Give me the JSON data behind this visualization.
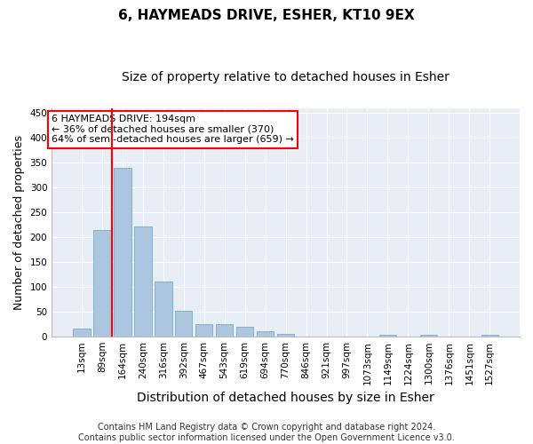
{
  "title": "6, HAYMEADS DRIVE, ESHER, KT10 9EX",
  "subtitle": "Size of property relative to detached houses in Esher",
  "xlabel": "Distribution of detached houses by size in Esher",
  "ylabel": "Number of detached properties",
  "categories": [
    "13sqm",
    "89sqm",
    "164sqm",
    "240sqm",
    "316sqm",
    "392sqm",
    "467sqm",
    "543sqm",
    "619sqm",
    "694sqm",
    "770sqm",
    "846sqm",
    "921sqm",
    "997sqm",
    "1073sqm",
    "1149sqm",
    "1224sqm",
    "1300sqm",
    "1376sqm",
    "1451sqm",
    "1527sqm"
  ],
  "values": [
    17,
    215,
    340,
    222,
    111,
    52,
    25,
    25,
    20,
    10,
    6,
    0,
    0,
    0,
    0,
    4,
    0,
    4,
    0,
    0,
    4
  ],
  "bar_color": "#adc6e0",
  "bar_edgecolor": "#7aaac8",
  "vline_x": 1.5,
  "vline_color": "red",
  "annotation_text": "6 HAYMEADS DRIVE: 194sqm\n← 36% of detached houses are smaller (370)\n64% of semi-detached houses are larger (659) →",
  "annotation_box_edgecolor": "red",
  "annotation_box_facecolor": "white",
  "footnote_line1": "Contains HM Land Registry data © Crown copyright and database right 2024.",
  "footnote_line2": "Contains public sector information licensed under the Open Government Licence v3.0.",
  "ylim": [
    0,
    460
  ],
  "yticks": [
    0,
    50,
    100,
    150,
    200,
    250,
    300,
    350,
    400,
    450
  ],
  "bg_color": "#e8eef5",
  "grid_color": "white",
  "title_fontsize": 11,
  "subtitle_fontsize": 10,
  "axis_label_fontsize": 9,
  "tick_fontsize": 7.5,
  "footnote_fontsize": 7
}
